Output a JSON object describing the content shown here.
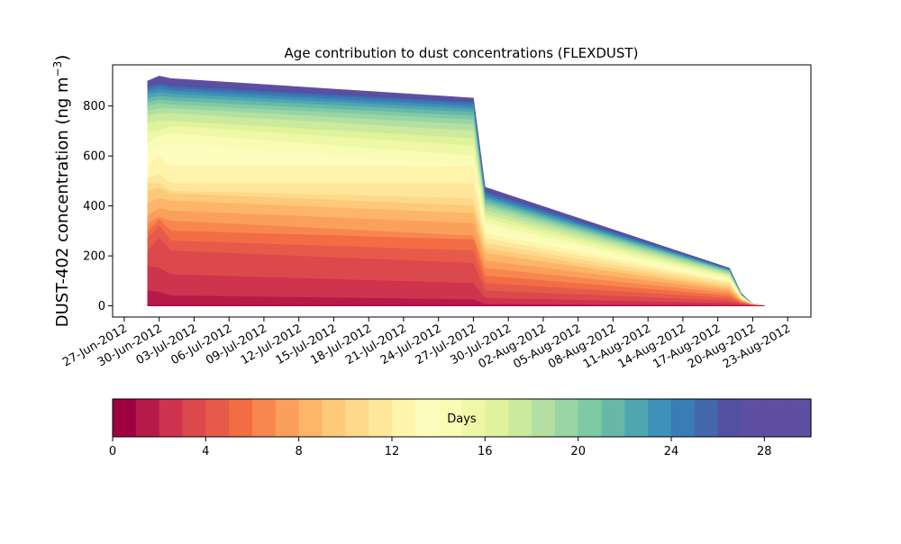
{
  "chart_data": {
    "type": "area",
    "title": "Age contribution to dust concentrations (FLEXDUST)",
    "ylabel": "DUST-402 concentration (ng m",
    "ylabel_sup": "−3",
    "ylabel_close": ")",
    "xlabel": "",
    "ylim": [
      -45,
      965
    ],
    "yticks": [
      0,
      200,
      400,
      600,
      800
    ],
    "xlim": [
      "2012-06-26",
      "2012-08-25"
    ],
    "xticks": [
      "27-Jun-2012",
      "30-Jun-2012",
      "03-Jul-2012",
      "06-Jul-2012",
      "09-Jul-2012",
      "12-Jul-2012",
      "15-Jul-2012",
      "18-Jul-2012",
      "21-Jul-2012",
      "24-Jul-2012",
      "27-Jul-2012",
      "30-Jul-2012",
      "02-Aug-2012",
      "05-Aug-2012",
      "08-Aug-2012",
      "11-Aug-2012",
      "14-Aug-2012",
      "17-Aug-2012",
      "20-Aug-2012",
      "23-Aug-2012"
    ],
    "x": [
      "2012-06-29",
      "2012-06-30",
      "2012-07-01",
      "2012-07-27",
      "2012-07-28",
      "2012-08-18",
      "2012-08-19",
      "2012-08-20",
      "2012-08-21"
    ],
    "age_days": [
      0,
      1,
      2,
      3,
      4,
      5,
      6,
      7,
      8,
      9,
      10,
      11,
      12,
      13,
      14,
      15,
      16,
      17,
      18,
      19,
      20,
      21,
      22,
      23,
      24,
      25,
      26,
      27,
      28,
      29
    ],
    "cumulative_totals": [
      [
        2,
        2,
        2,
        2,
        1,
        0,
        0,
        0,
        0
      ],
      [
        60,
        55,
        40,
        25,
        5,
        2,
        1,
        0,
        0
      ],
      [
        160,
        150,
        125,
        90,
        30,
        10,
        4,
        1,
        0
      ],
      [
        220,
        270,
        220,
        170,
        60,
        20,
        8,
        2,
        0
      ],
      [
        270,
        320,
        260,
        220,
        90,
        30,
        11,
        3,
        0
      ],
      [
        300,
        345,
        300,
        265,
        120,
        40,
        14,
        3,
        0
      ],
      [
        330,
        355,
        340,
        280,
        150,
        50,
        17,
        4,
        0
      ],
      [
        360,
        390,
        380,
        330,
        180,
        60,
        20,
        4,
        0
      ],
      [
        410,
        430,
        420,
        370,
        210,
        68,
        23,
        4,
        0
      ],
      [
        460,
        470,
        450,
        400,
        230,
        76,
        25,
        4,
        0
      ],
      [
        490,
        490,
        460,
        430,
        250,
        84,
        27,
        5,
        0
      ],
      [
        510,
        525,
        490,
        490,
        270,
        92,
        29,
        5,
        0
      ],
      [
        560,
        600,
        560,
        560,
        290,
        98,
        31,
        5,
        0
      ],
      [
        610,
        640,
        650,
        560,
        310,
        104,
        33,
        5,
        0
      ],
      [
        650,
        680,
        690,
        600,
        330,
        110,
        35,
        5,
        0
      ],
      [
        700,
        700,
        720,
        640,
        350,
        116,
        37,
        6,
        1
      ],
      [
        730,
        740,
        740,
        670,
        365,
        121,
        39,
        6,
        1
      ],
      [
        760,
        770,
        770,
        700,
        380,
        126,
        41,
        6,
        1
      ],
      [
        780,
        790,
        790,
        725,
        395,
        130,
        42,
        6,
        1
      ],
      [
        800,
        810,
        805,
        745,
        405,
        134,
        43,
        6,
        1
      ],
      [
        815,
        825,
        820,
        760,
        415,
        137,
        44,
        6,
        1
      ],
      [
        830,
        840,
        835,
        775,
        425,
        140,
        45,
        6,
        1
      ],
      [
        845,
        855,
        848,
        787,
        433,
        142,
        46,
        7,
        1
      ],
      [
        858,
        868,
        860,
        798,
        441,
        144,
        47,
        7,
        1
      ],
      [
        868,
        880,
        870,
        808,
        449,
        146,
        48,
        7,
        1
      ],
      [
        877,
        890,
        880,
        815,
        456,
        147,
        49,
        7,
        1
      ],
      [
        885,
        900,
        890,
        821,
        462,
        148,
        49,
        7,
        1
      ],
      [
        892,
        908,
        898,
        826,
        467,
        149,
        50,
        7,
        1
      ],
      [
        897,
        915,
        905,
        830,
        471,
        150,
        50,
        7,
        1
      ],
      [
        900,
        920,
        910,
        832,
        475,
        151,
        50,
        7,
        1
      ]
    ],
    "colorbar": {
      "label": "Days",
      "range": [
        0,
        30
      ],
      "ticks": [
        0,
        4,
        8,
        12,
        16,
        20,
        24,
        28
      ],
      "colormap": "Spectral",
      "colors": [
        "#9e0142",
        "#b61a48",
        "#cf334e",
        "#dc494c",
        "#e75a49",
        "#f26d44",
        "#f8874f",
        "#fba05c",
        "#fdb569",
        "#fdca79",
        "#fed98b",
        "#fee79b",
        "#fff4ac",
        "#fefcbd",
        "#f9fcb5",
        "#eef8a7",
        "#e0f39a",
        "#cbea9d",
        "#b3e0a2",
        "#99d5a4",
        "#7fcaa5",
        "#67b8a9",
        "#4fa6b1",
        "#3e91b8",
        "#3a7cb6",
        "#4567ad",
        "#5250a3",
        "#5e4fa2",
        "#5e4fa2",
        "#5e4fa2"
      ]
    }
  }
}
